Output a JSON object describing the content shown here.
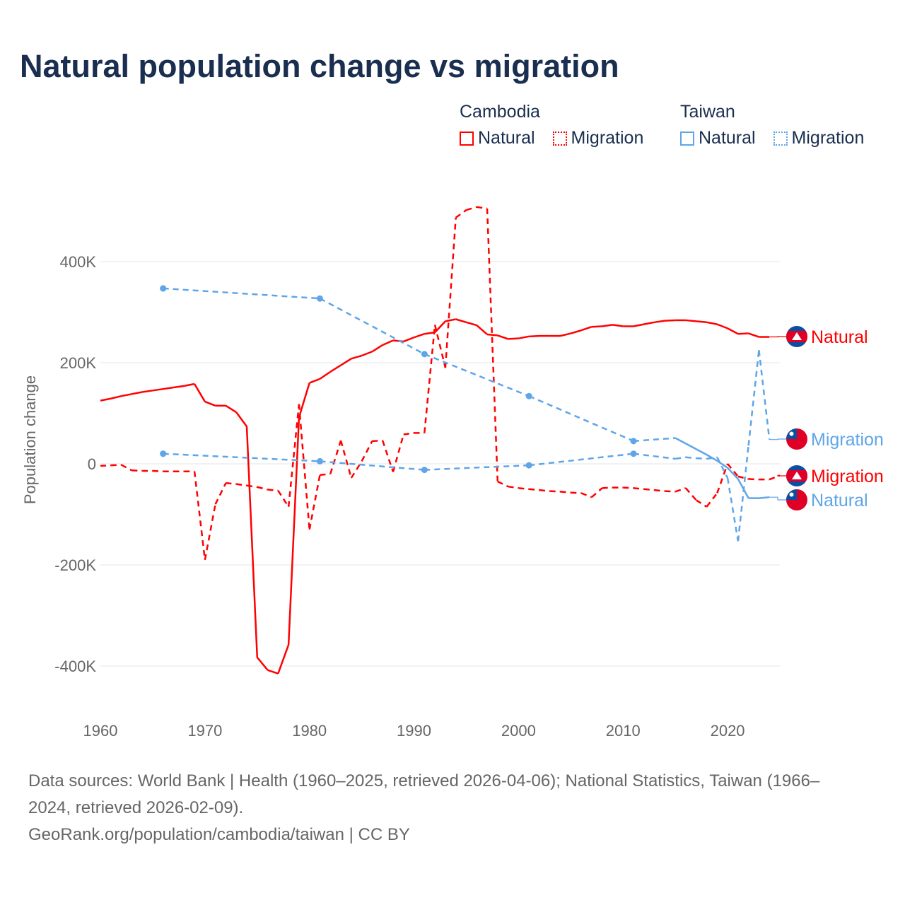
{
  "chart_data": {
    "type": "line",
    "title": "Natural population change vs migration",
    "xlabel": "",
    "ylabel": "Population change",
    "xlim": [
      1960,
      2025
    ],
    "ylim": [
      -500000,
      520000
    ],
    "grid": true,
    "x_ticks": [
      "1960",
      "1970",
      "1980",
      "1990",
      "2000",
      "2010",
      "2020"
    ],
    "y_ticks": [
      {
        "v": 400000,
        "label": "400K"
      },
      {
        "v": 200000,
        "label": "200K"
      },
      {
        "v": 0,
        "label": "0"
      },
      {
        "v": -200000,
        "label": "-200K"
      },
      {
        "v": -400000,
        "label": "-400K"
      }
    ],
    "legend": {
      "placement": "top-right",
      "groups": [
        {
          "country": "Cambodia",
          "items": [
            "Natural",
            "Migration"
          ]
        },
        {
          "country": "Taiwan",
          "items": [
            "Natural",
            "Migration"
          ]
        }
      ]
    },
    "series": [
      {
        "name": "Cambodia Natural",
        "country": "Cambodia",
        "label": "Natural",
        "color": "#ff0000",
        "dash": false,
        "x": [
          1960,
          1961,
          1962,
          1963,
          1964,
          1965,
          1966,
          1967,
          1968,
          1969,
          1970,
          1971,
          1972,
          1973,
          1974,
          1975,
          1976,
          1977,
          1978,
          1979,
          1980,
          1981,
          1982,
          1983,
          1984,
          1985,
          1986,
          1987,
          1988,
          1989,
          1990,
          1991,
          1992,
          1993,
          1994,
          1995,
          1996,
          1997,
          1998,
          1999,
          2000,
          2001,
          2002,
          2003,
          2004,
          2005,
          2006,
          2007,
          2008,
          2009,
          2010,
          2011,
          2012,
          2013,
          2014,
          2015,
          2016,
          2017,
          2018,
          2019,
          2020,
          2021,
          2022,
          2023,
          2024
        ],
        "y": [
          125000,
          129000,
          134000,
          138000,
          142000,
          145000,
          148000,
          151000,
          154000,
          158000,
          123000,
          115000,
          115000,
          102000,
          74000,
          -383000,
          -408000,
          -415000,
          -358000,
          92000,
          160000,
          168000,
          182000,
          195000,
          208000,
          214000,
          222000,
          235000,
          244000,
          242000,
          250000,
          257000,
          260000,
          282000,
          286000,
          280000,
          274000,
          256000,
          254000,
          247000,
          248000,
          252000,
          253000,
          253000,
          253000,
          258000,
          264000,
          271000,
          272000,
          275000,
          272000,
          272000,
          276000,
          280000,
          283000,
          284000,
          284000,
          282000,
          280000,
          276000,
          268000,
          257000,
          258000,
          251000,
          251000
        ]
      },
      {
        "name": "Cambodia Migration",
        "country": "Cambodia",
        "label": "Migration",
        "color": "#ff0000",
        "dash": true,
        "x": [
          1960,
          1961,
          1962,
          1963,
          1964,
          1965,
          1966,
          1967,
          1968,
          1969,
          1970,
          1971,
          1972,
          1973,
          1974,
          1975,
          1976,
          1977,
          1978,
          1979,
          1980,
          1981,
          1982,
          1983,
          1984,
          1985,
          1986,
          1987,
          1988,
          1989,
          1990,
          1991,
          1992,
          1993,
          1994,
          1995,
          1996,
          1997,
          1998,
          1999,
          2000,
          2001,
          2002,
          2003,
          2004,
          2005,
          2006,
          2007,
          2008,
          2009,
          2010,
          2011,
          2012,
          2013,
          2014,
          2015,
          2016,
          2017,
          2018,
          2019,
          2020,
          2021,
          2022,
          2023,
          2024,
          2025
        ],
        "y": [
          -4000,
          -3000,
          -2000,
          -13000,
          -14000,
          -14000,
          -15000,
          -15000,
          -15000,
          -15000,
          -190000,
          -80000,
          -38000,
          -40000,
          -43000,
          -46000,
          -51000,
          -53000,
          -85000,
          118000,
          -130000,
          -22000,
          -20000,
          46000,
          -28000,
          5000,
          45000,
          46000,
          -16000,
          58000,
          61000,
          61000,
          275000,
          190000,
          487000,
          502000,
          508000,
          505000,
          -35000,
          -45000,
          -48000,
          -50000,
          -52000,
          -54000,
          -55000,
          -57000,
          -58000,
          -66000,
          -48000,
          -47000,
          -47000,
          -48000,
          -50000,
          -52000,
          -54000,
          -55000,
          -48000,
          -72000,
          -85000,
          -58000,
          0,
          -25000,
          -30000,
          -31000,
          -31000,
          -23000
        ]
      },
      {
        "name": "Taiwan Natural",
        "country": "Taiwan",
        "label": "Natural",
        "color": "#5fa5e8",
        "dash": false,
        "x": [
          1966,
          1981,
          1991,
          2001,
          2011,
          2015,
          2016,
          2017,
          2018,
          2019,
          2020,
          2021,
          2022,
          2023,
          2024
        ],
        "y": [
          347000,
          327000,
          217000,
          134000,
          45000,
          51000,
          40000,
          29000,
          18000,
          6000,
          -8000,
          -30000,
          -68000,
          -68000,
          -66000
        ]
      },
      {
        "name": "Taiwan Migration",
        "country": "Taiwan",
        "label": "Migration",
        "color": "#5fa5e8",
        "dash": true,
        "x": [
          1966,
          1981,
          1991,
          2001,
          2011,
          2015,
          2016,
          2017,
          2018,
          2019,
          2020,
          2021,
          2022,
          2023,
          2024
        ],
        "y": [
          20000,
          5000,
          -12000,
          -3000,
          20000,
          10000,
          13000,
          11000,
          10000,
          13000,
          -28000,
          -153000,
          36000,
          225000,
          48000
        ]
      }
    ]
  },
  "footer": {
    "sources_line1": "Data sources: World Bank | Health (1960–2025, retrieved 2026-04-06); National Statistics, Taiwan (1966–",
    "sources_line2": "2024, retrieved 2026-02-09).",
    "credit": "GeoRank.org/population/cambodia/taiwan | CC BY"
  }
}
